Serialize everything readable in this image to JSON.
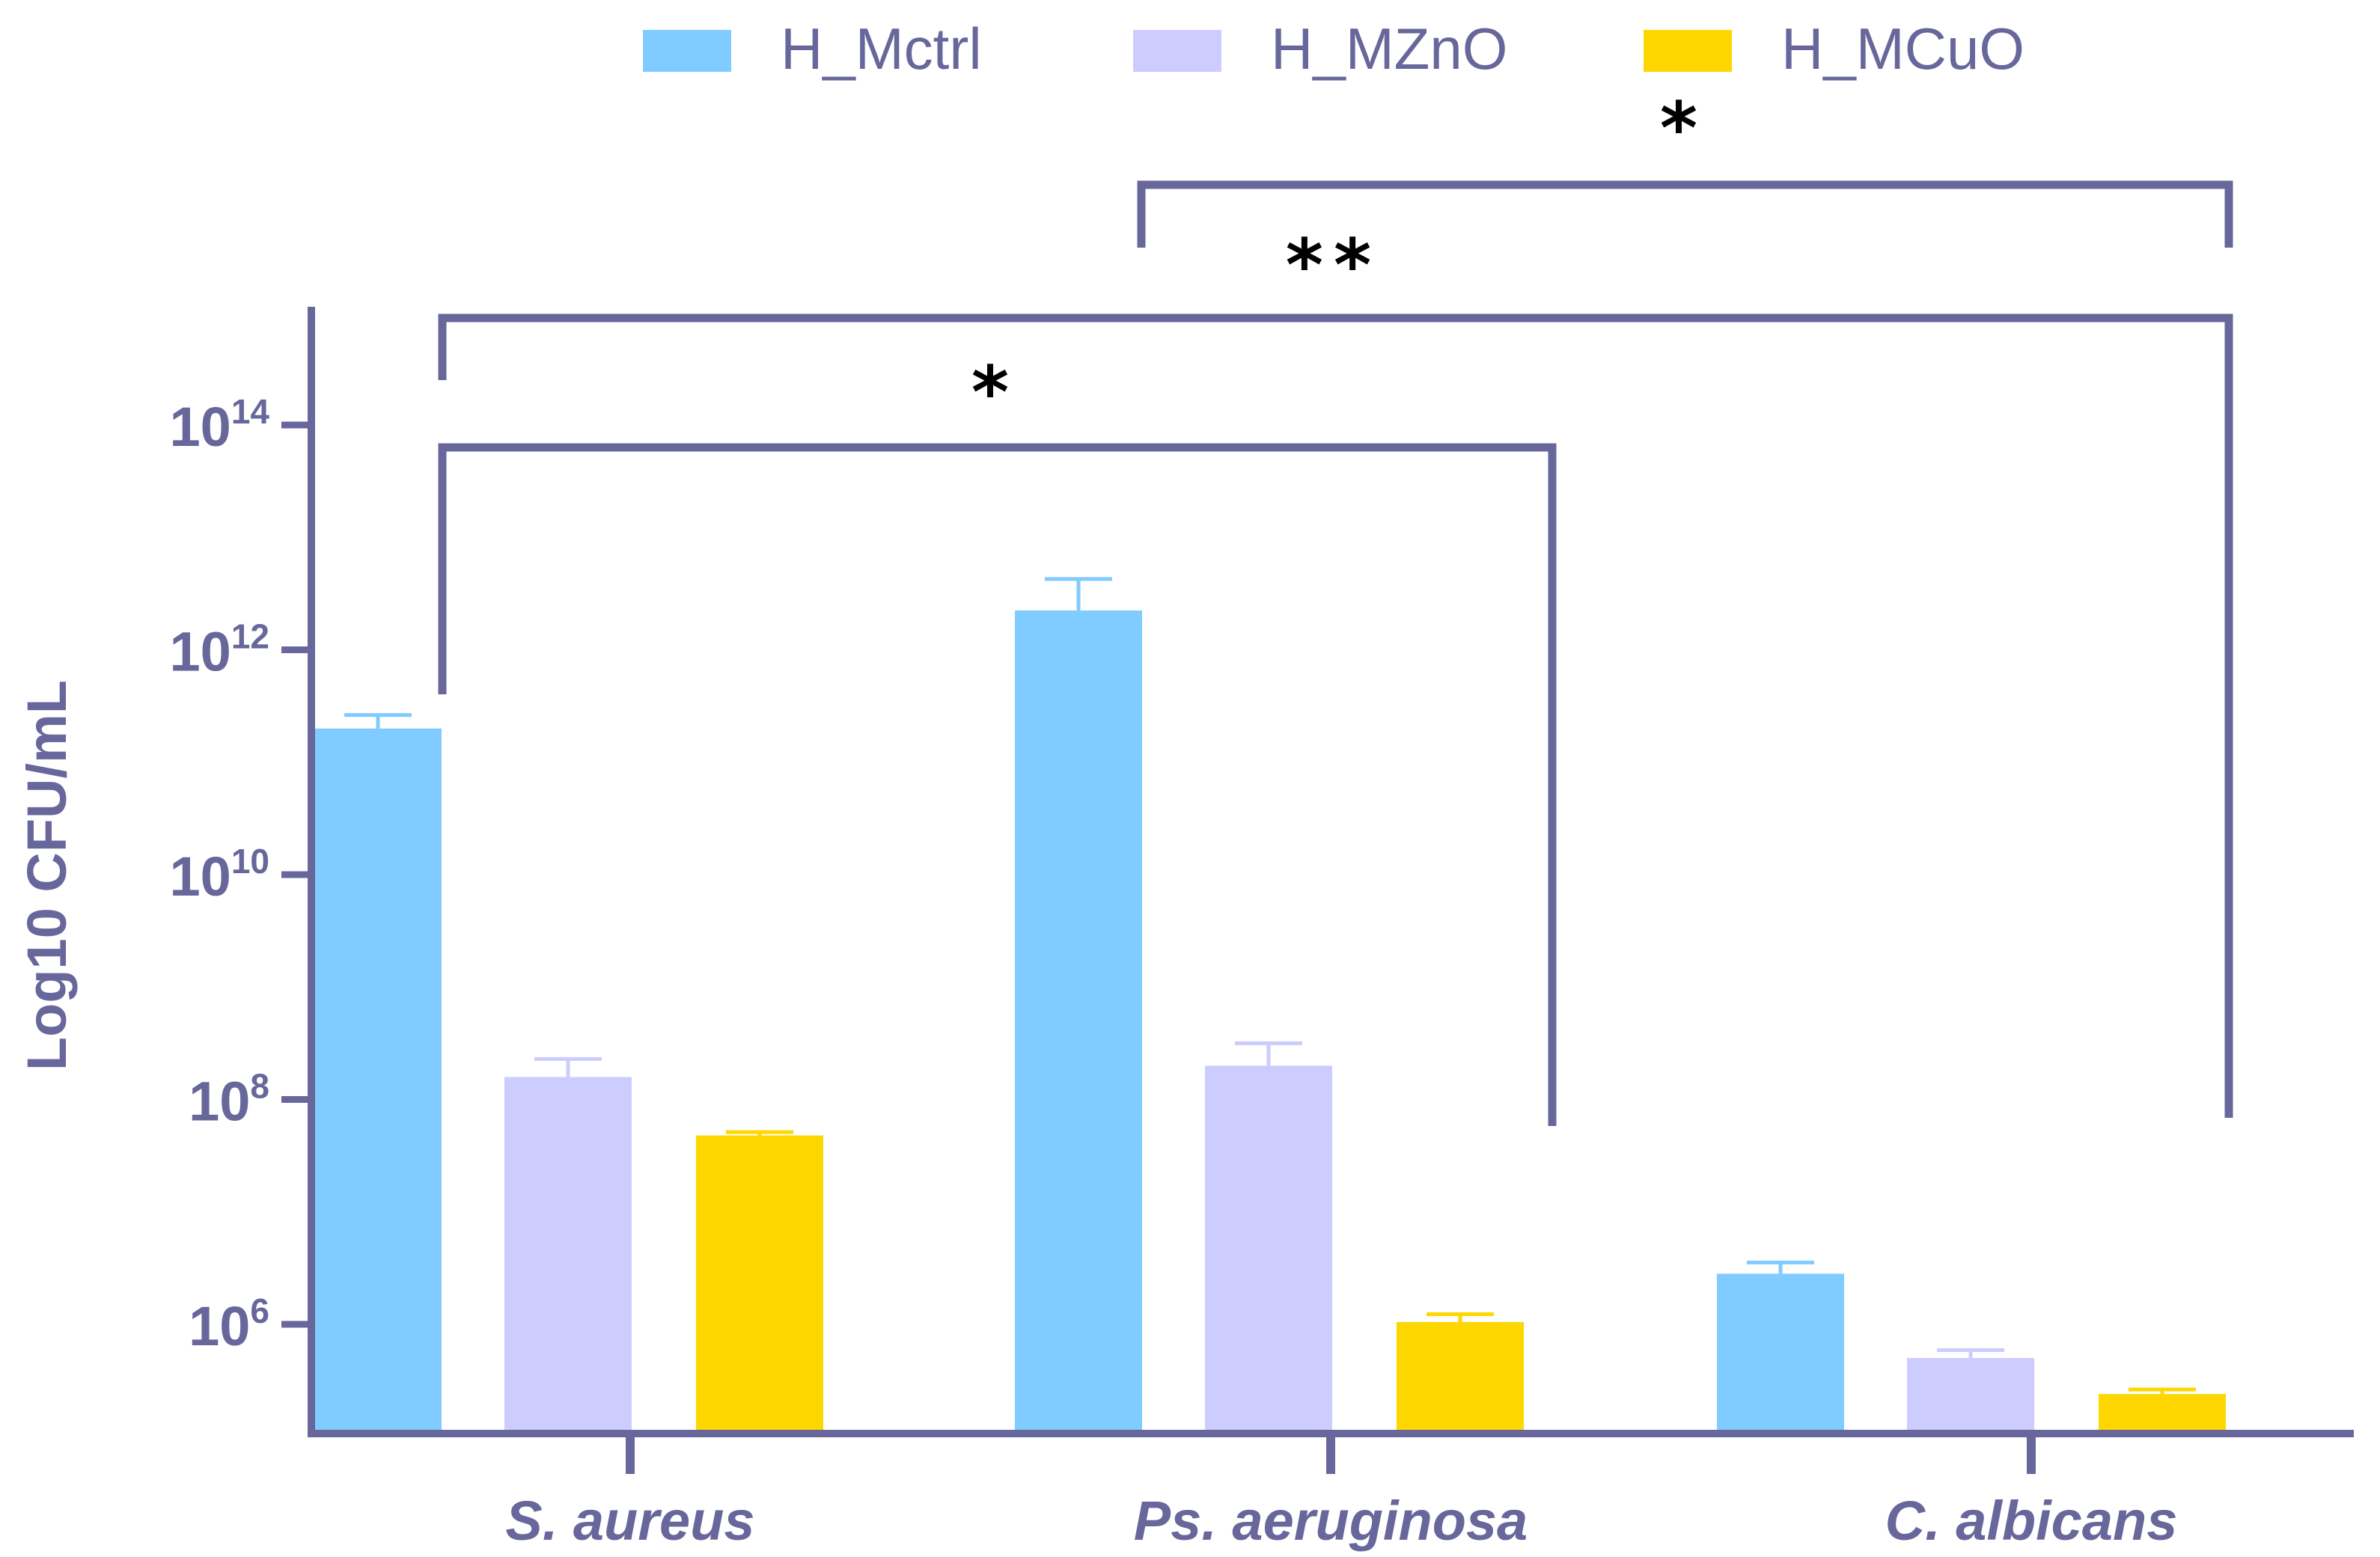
{
  "chart_data": {
    "type": "bar",
    "title": "",
    "xlabel": "",
    "ylabel": "Log10 CFU/mL",
    "yscale": "log10",
    "ylim_exponent": [
      4.6,
      15.0
    ],
    "y_ticks": [
      {
        "base": "10",
        "exp": "6",
        "value": 6
      },
      {
        "base": "10",
        "exp": "8",
        "value": 8
      },
      {
        "base": "10",
        "exp": "10",
        "value": 10
      },
      {
        "base": "10",
        "exp": "12",
        "value": 12
      },
      {
        "base": "10",
        "exp": "14",
        "value": 14
      }
    ],
    "categories": [
      "S. aureus",
      "Ps. aeruginosa",
      "C. albicans"
    ],
    "series": [
      {
        "name": "H_Mctrl",
        "color": "#80cbff",
        "log_values": [
          11.3,
          12.35,
          6.45
        ],
        "log_errors": [
          0.12,
          0.28,
          0.1
        ]
      },
      {
        "name": "H_MZnO",
        "color": "#ccccff",
        "log_values": [
          8.2,
          8.3,
          5.7
        ],
        "log_errors": [
          0.16,
          0.2,
          0.07
        ]
      },
      {
        "name": "H_MCuO",
        "color": "#ffd700",
        "log_values": [
          7.68,
          6.02,
          5.38
        ],
        "log_errors": [
          0.03,
          0.07,
          0.04
        ]
      }
    ],
    "significance": [
      {
        "label": "*",
        "from_category": 0,
        "to_category": 1
      },
      {
        "label": "**",
        "from_category": 0,
        "to_category": 2
      },
      {
        "label": "*",
        "from_category": 1,
        "to_category": 2
      }
    ],
    "colors": {
      "axis": "#67679b",
      "star": "#000000"
    }
  }
}
